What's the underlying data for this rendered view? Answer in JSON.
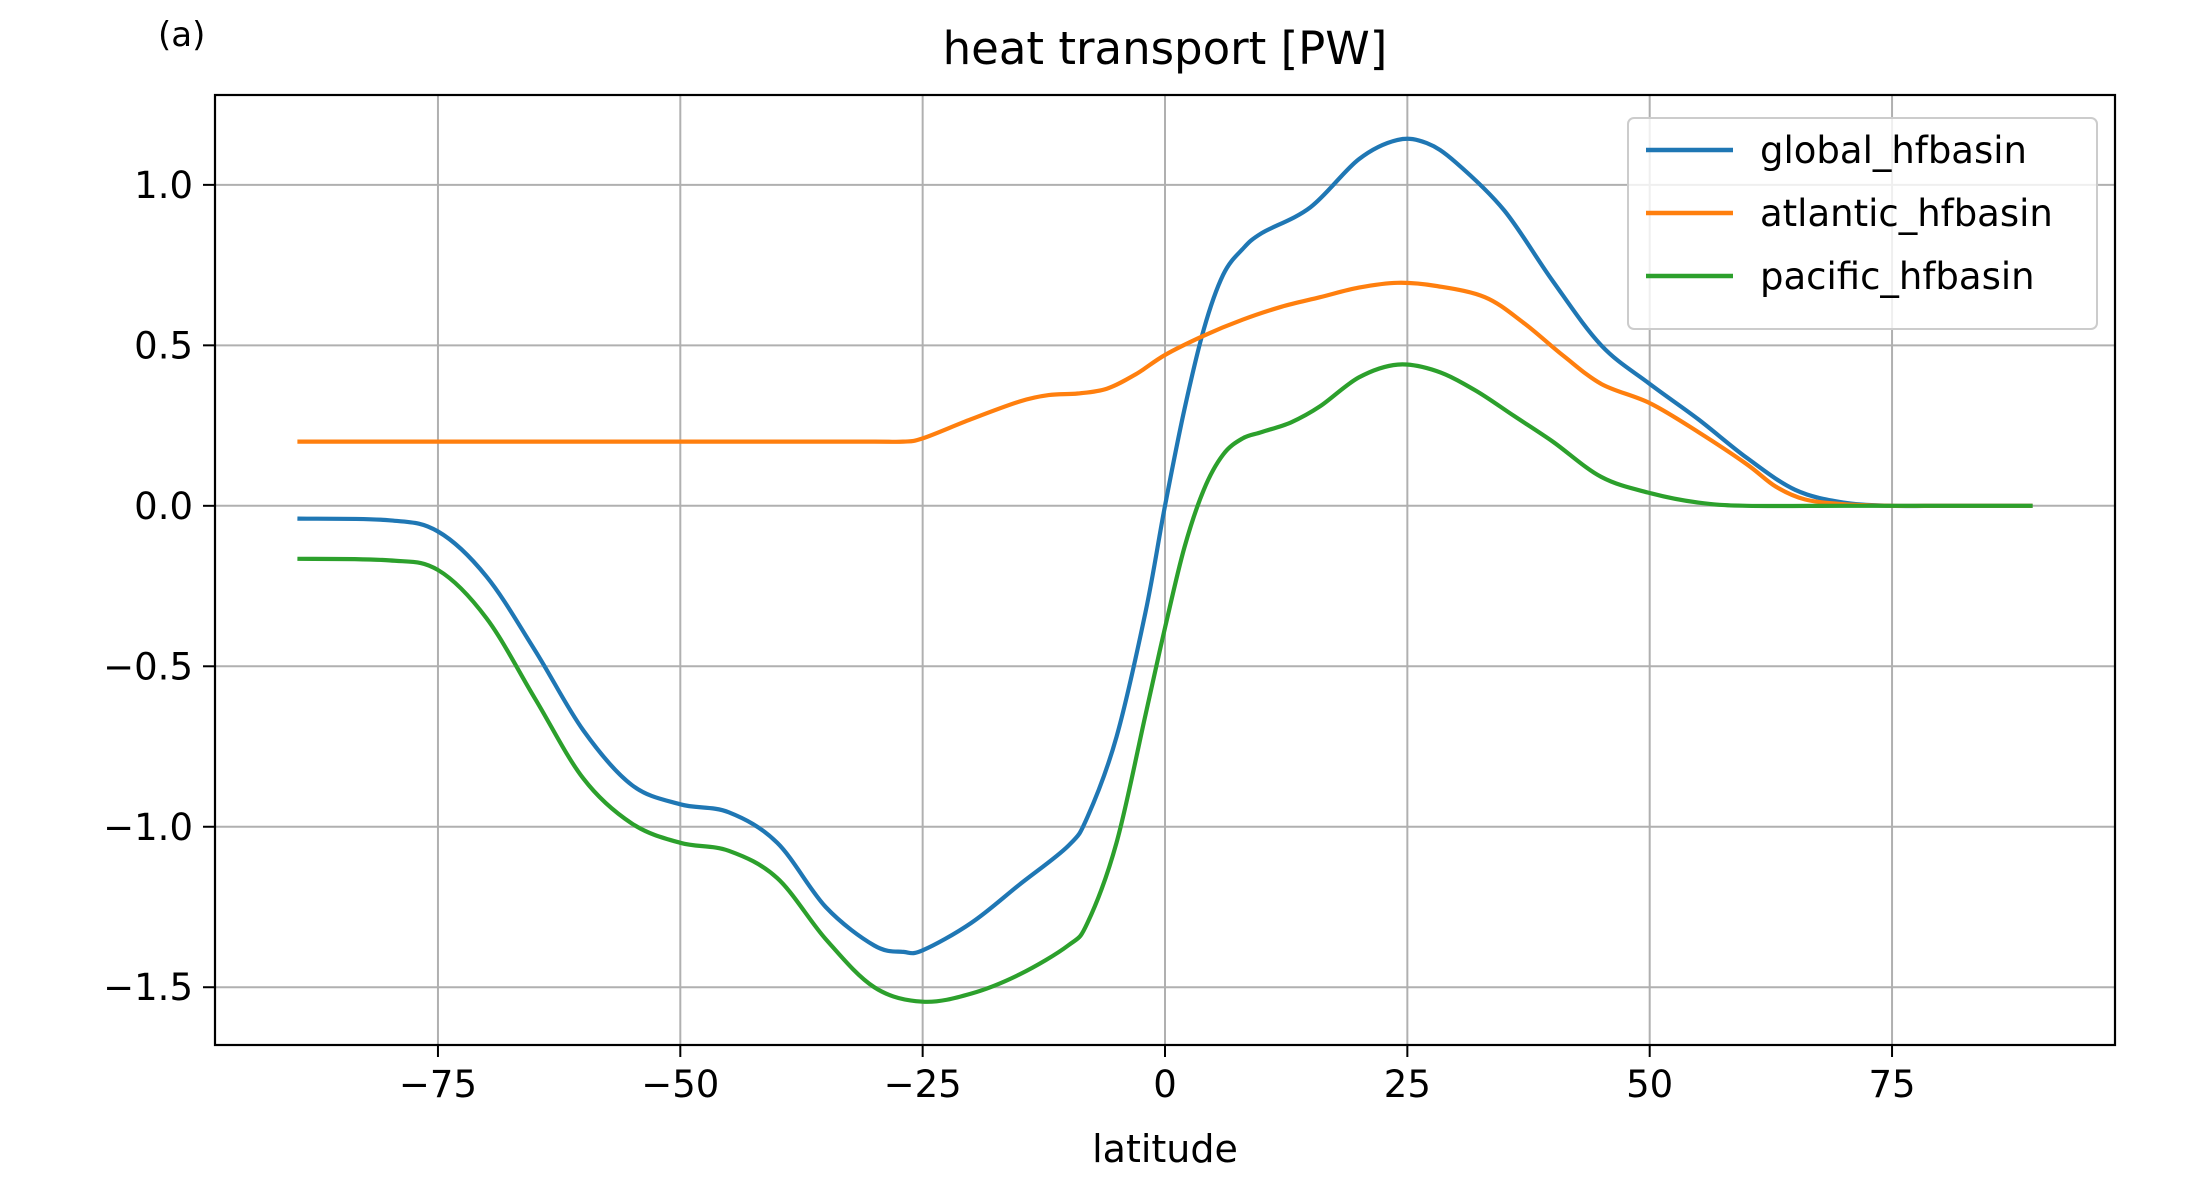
{
  "panel_label": "(a)",
  "chart_data": {
    "type": "line",
    "title": "heat transport [PW]",
    "xlabel": "latitude",
    "ylabel": "",
    "xlim": [
      -98.0,
      98.0
    ],
    "ylim": [
      -1.68,
      1.28
    ],
    "xticks": [
      -75,
      -50,
      -25,
      0,
      25,
      50,
      75
    ],
    "xtick_labels": [
      "−75",
      "−50",
      "−25",
      "0",
      "25",
      "50",
      "75"
    ],
    "yticks": [
      -1.5,
      -1.0,
      -0.5,
      0.0,
      0.5,
      1.0
    ],
    "ytick_labels": [
      "−1.5",
      "−1.0",
      "−0.5",
      "0.0",
      "0.5",
      "1.0"
    ],
    "grid": true,
    "legend_position": "top-right",
    "series": [
      {
        "name": "global_hfbasin",
        "color": "#1f77b4",
        "points": [
          [
            -89.5,
            -0.04
          ],
          [
            -80,
            -0.045
          ],
          [
            -75,
            -0.08
          ],
          [
            -70,
            -0.22
          ],
          [
            -65,
            -0.45
          ],
          [
            -60,
            -0.7
          ],
          [
            -55,
            -0.87
          ],
          [
            -50,
            -0.93
          ],
          [
            -45,
            -0.955
          ],
          [
            -40,
            -1.05
          ],
          [
            -35,
            -1.25
          ],
          [
            -30,
            -1.37
          ],
          [
            -27,
            -1.39
          ],
          [
            -25,
            -1.385
          ],
          [
            -20,
            -1.3
          ],
          [
            -15,
            -1.18
          ],
          [
            -10,
            -1.06
          ],
          [
            -8,
            -0.97
          ],
          [
            -5,
            -0.72
          ],
          [
            -2,
            -0.33
          ],
          [
            0,
            0.0
          ],
          [
            2,
            0.3
          ],
          [
            4,
            0.55
          ],
          [
            6,
            0.72
          ],
          [
            8,
            0.8
          ],
          [
            10,
            0.85
          ],
          [
            15,
            0.93
          ],
          [
            20,
            1.08
          ],
          [
            24,
            1.14
          ],
          [
            27,
            1.13
          ],
          [
            30,
            1.07
          ],
          [
            35,
            0.92
          ],
          [
            40,
            0.7
          ],
          [
            45,
            0.5
          ],
          [
            50,
            0.38
          ],
          [
            55,
            0.27
          ],
          [
            60,
            0.15
          ],
          [
            65,
            0.05
          ],
          [
            70,
            0.01
          ],
          [
            75,
            0.0
          ],
          [
            80,
            0.0
          ],
          [
            85,
            0.0
          ],
          [
            89.5,
            0.0
          ]
        ]
      },
      {
        "name": "atlantic_hfbasin",
        "color": "#ff7f0e",
        "points": [
          [
            -89.5,
            0.2
          ],
          [
            -80,
            0.2
          ],
          [
            -70,
            0.2
          ],
          [
            -60,
            0.2
          ],
          [
            -50,
            0.2
          ],
          [
            -40,
            0.2
          ],
          [
            -30,
            0.2
          ],
          [
            -27,
            0.2
          ],
          [
            -25,
            0.21
          ],
          [
            -20,
            0.27
          ],
          [
            -15,
            0.325
          ],
          [
            -12,
            0.345
          ],
          [
            -9,
            0.35
          ],
          [
            -6,
            0.365
          ],
          [
            -3,
            0.41
          ],
          [
            0,
            0.47
          ],
          [
            4,
            0.53
          ],
          [
            8,
            0.58
          ],
          [
            12,
            0.62
          ],
          [
            16,
            0.65
          ],
          [
            20,
            0.68
          ],
          [
            24,
            0.695
          ],
          [
            28,
            0.685
          ],
          [
            33,
            0.65
          ],
          [
            37,
            0.57
          ],
          [
            41,
            0.47
          ],
          [
            45,
            0.38
          ],
          [
            50,
            0.32
          ],
          [
            55,
            0.23
          ],
          [
            60,
            0.13
          ],
          [
            63,
            0.06
          ],
          [
            66,
            0.02
          ],
          [
            70,
            0.005
          ],
          [
            75,
            0.0
          ],
          [
            80,
            0.0
          ],
          [
            85,
            0.0
          ],
          [
            89.5,
            0.0
          ]
        ]
      },
      {
        "name": "pacific_hfbasin",
        "color": "#2ca02c",
        "points": [
          [
            -89.5,
            -0.165
          ],
          [
            -80,
            -0.17
          ],
          [
            -75,
            -0.2
          ],
          [
            -70,
            -0.35
          ],
          [
            -65,
            -0.6
          ],
          [
            -60,
            -0.85
          ],
          [
            -55,
            -0.99
          ],
          [
            -50,
            -1.05
          ],
          [
            -45,
            -1.075
          ],
          [
            -40,
            -1.16
          ],
          [
            -35,
            -1.35
          ],
          [
            -30,
            -1.5
          ],
          [
            -25,
            -1.545
          ],
          [
            -20,
            -1.52
          ],
          [
            -15,
            -1.46
          ],
          [
            -10,
            -1.37
          ],
          [
            -8,
            -1.3
          ],
          [
            -5,
            -1.05
          ],
          [
            -2,
            -0.65
          ],
          [
            0,
            -0.38
          ],
          [
            2,
            -0.13
          ],
          [
            4,
            0.05
          ],
          [
            6,
            0.16
          ],
          [
            8,
            0.21
          ],
          [
            10,
            0.23
          ],
          [
            13,
            0.26
          ],
          [
            16,
            0.31
          ],
          [
            20,
            0.4
          ],
          [
            24,
            0.44
          ],
          [
            28,
            0.42
          ],
          [
            32,
            0.36
          ],
          [
            36,
            0.28
          ],
          [
            40,
            0.2
          ],
          [
            45,
            0.09
          ],
          [
            50,
            0.04
          ],
          [
            55,
            0.01
          ],
          [
            60,
            0.0
          ],
          [
            70,
            0.0
          ],
          [
            80,
            0.0
          ],
          [
            89.5,
            0.0
          ]
        ]
      }
    ]
  }
}
